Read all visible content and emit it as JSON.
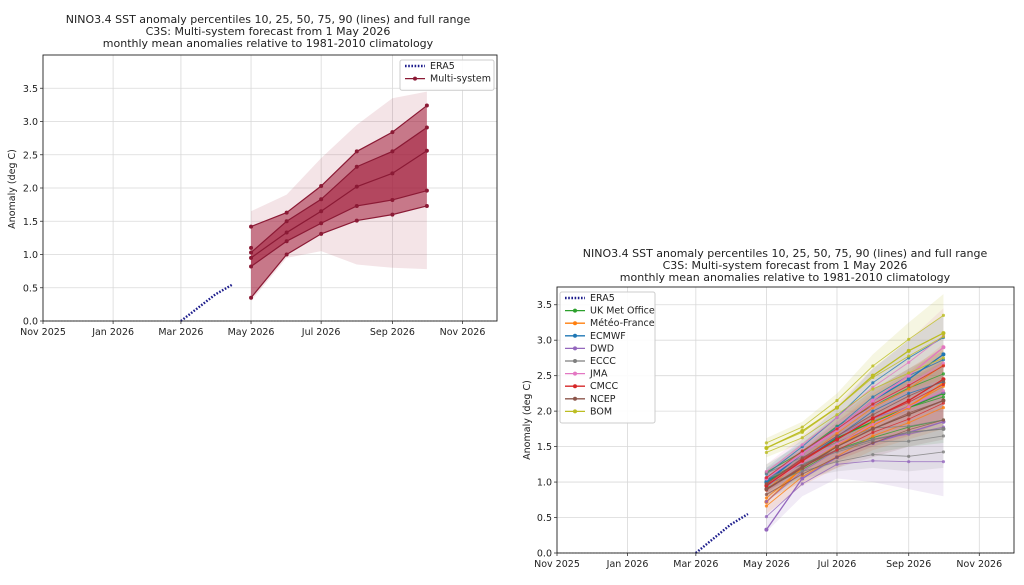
{
  "chart_data": [
    {
      "type": "line",
      "title": "NINO3.4 SST anomaly percentiles 10, 25, 50, 75, 90 (lines) and full range",
      "subtitle_1": "C3S: Multi-system forecast from 1 May 2026",
      "subtitle_2": "monthly mean anomalies relative to 1981-2010 climatology",
      "xlabel": "",
      "ylabel": "Anomaly (deg C)",
      "xlim": [
        "2025-11-01",
        "2026-12-01"
      ],
      "ylim": [
        0,
        4.0
      ],
      "x_ticks": [
        "Nov 2025",
        "Jan 2026",
        "Mar 2026",
        "May 2026",
        "Jul 2026",
        "Sep 2026",
        "Nov 2026"
      ],
      "y_ticks": [
        "0.0",
        "0.5",
        "1.0",
        "1.5",
        "2.0",
        "2.5",
        "3.0",
        "3.5"
      ],
      "grid": true,
      "legend_position": "top-right",
      "legend": [
        "ERA5",
        "Multi-system"
      ],
      "era5": {
        "color": "#1c1c8c",
        "x": [
          "2026-03-01",
          "2026-03-04",
          "2026-03-07",
          "2026-03-10",
          "2026-03-13",
          "2026-03-16",
          "2026-03-19",
          "2026-03-22",
          "2026-03-25",
          "2026-03-28",
          "2026-03-31",
          "2026-04-03",
          "2026-04-06",
          "2026-04-09",
          "2026-04-12",
          "2026-04-15"
        ],
        "y": [
          0.0,
          0.04,
          0.08,
          0.12,
          0.16,
          0.2,
          0.24,
          0.28,
          0.32,
          0.36,
          0.4,
          0.43,
          0.46,
          0.49,
          0.52,
          0.55
        ]
      },
      "forecast_x": [
        "2026-05-01",
        "2026-06-01",
        "2026-07-01",
        "2026-08-01",
        "2026-09-01",
        "2026-10-01"
      ],
      "band_color": "#a31f3c",
      "full_range": {
        "min": [
          0.3,
          0.95,
          1.05,
          0.85,
          0.8,
          0.78
        ],
        "max": [
          1.65,
          1.9,
          2.45,
          2.95,
          3.35,
          3.45
        ]
      },
      "percentiles": {
        "p10": [
          0.35,
          1.0,
          1.31,
          1.51,
          1.6,
          1.73
        ],
        "p25": [
          0.82,
          1.2,
          1.47,
          1.73,
          1.82,
          1.96
        ],
        "p50": [
          0.95,
          1.33,
          1.65,
          2.02,
          2.22,
          2.56
        ],
        "p75": [
          1.03,
          1.5,
          1.83,
          2.32,
          2.55,
          2.91
        ],
        "p90": [
          1.42,
          1.63,
          2.03,
          2.55,
          2.84,
          3.24
        ]
      },
      "extra_points_may": [
        1.1
      ]
    },
    {
      "type": "line",
      "title": "NINO3.4 SST anomaly percentiles 10, 25, 50, 75, 90 (lines) and full range",
      "subtitle_1": "C3S: Multi-system forecast from 1 May 2026",
      "subtitle_2": "monthly mean anomalies relative to 1981-2010 climatology",
      "xlabel": "",
      "ylabel": "Anomaly (deg C)",
      "xlim": [
        "2025-11-01",
        "2026-12-01"
      ],
      "ylim": [
        0,
        3.75
      ],
      "x_ticks": [
        "Nov 2025",
        "Jan 2026",
        "Mar 2026",
        "May 2026",
        "Jul 2026",
        "Sep 2026",
        "Nov 2026"
      ],
      "y_ticks": [
        "0.0",
        "0.5",
        "1.0",
        "1.5",
        "2.0",
        "2.5",
        "3.0",
        "3.5"
      ],
      "grid": true,
      "legend_position": "top-left",
      "forecast_x": [
        "2026-05-01",
        "2026-06-01",
        "2026-07-01",
        "2026-08-01",
        "2026-09-01",
        "2026-10-01"
      ],
      "era5": {
        "color": "#1c1c8c",
        "x": [
          "2026-03-01",
          "2026-03-04",
          "2026-03-07",
          "2026-03-10",
          "2026-03-13",
          "2026-03-16",
          "2026-03-19",
          "2026-03-22",
          "2026-03-25",
          "2026-03-28",
          "2026-03-31",
          "2026-04-03",
          "2026-04-06",
          "2026-04-09",
          "2026-04-12",
          "2026-04-15"
        ],
        "y": [
          0.0,
          0.04,
          0.08,
          0.12,
          0.16,
          0.2,
          0.24,
          0.28,
          0.32,
          0.36,
          0.4,
          0.43,
          0.46,
          0.49,
          0.52,
          0.55
        ]
      },
      "legend": [
        "ERA5",
        "UK Met Office",
        "Météo-France",
        "ECMWF",
        "DWD",
        "ECCC",
        "JMA",
        "CMCC",
        "NCEP",
        "BOM"
      ],
      "series": [
        {
          "name": "UK Met Office",
          "color": "#2ca02c",
          "range": {
            "min": [
              0.8,
              1.05,
              1.3,
              1.4,
              1.5,
              1.55
            ],
            "max": [
              1.25,
              1.55,
              1.95,
              2.3,
              2.6,
              2.85
            ]
          },
          "values": [
            1.0,
            1.3,
            1.62,
            1.85,
            2.05,
            2.25
          ]
        },
        {
          "name": "Météo-France",
          "color": "#ff7f0e",
          "range": {
            "min": [
              0.55,
              0.95,
              1.2,
              1.45,
              1.6,
              1.75
            ],
            "max": [
              1.0,
              1.45,
              1.85,
              2.25,
              2.55,
              2.95
            ]
          },
          "values": [
            0.72,
            1.2,
            1.5,
            1.8,
            2.05,
            2.4
          ]
        },
        {
          "name": "ECMWF",
          "color": "#1f77b4",
          "range": {
            "min": [
              0.85,
              1.2,
              1.5,
              1.8,
              2.0,
              2.1
            ],
            "max": [
              1.2,
              1.6,
              2.05,
              2.6,
              3.0,
              3.35
            ]
          },
          "values": [
            1.0,
            1.4,
            1.75,
            2.15,
            2.45,
            2.8
          ]
        },
        {
          "name": "DWD",
          "color": "#9467bd",
          "range": {
            "min": [
              0.3,
              0.8,
              1.05,
              1.0,
              0.9,
              0.8
            ],
            "max": [
              1.15,
              1.5,
              1.85,
              2.2,
              2.45,
              2.75
            ]
          },
          "values": [
            0.33,
            1.05,
            1.35,
            1.55,
            1.7,
            1.85
          ]
        },
        {
          "name": "ECCC",
          "color": "#7f7f7f",
          "range": {
            "min": [
              0.9,
              1.05,
              1.15,
              1.2,
              1.15,
              1.2
            ],
            "max": [
              1.2,
              1.45,
              1.7,
              1.95,
              2.0,
              2.1
            ]
          },
          "values": [
            1.05,
            1.25,
            1.45,
            1.6,
            1.7,
            1.75
          ]
        },
        {
          "name": "JMA",
          "color": "#e377c2",
          "range": {
            "min": [
              0.85,
              1.15,
              1.35,
              1.55,
              1.75,
              1.9
            ],
            "max": [
              1.25,
              1.65,
              2.1,
              2.6,
              3.0,
              3.45
            ]
          },
          "values": [
            1.05,
            1.4,
            1.75,
            2.15,
            2.5,
            2.9
          ]
        },
        {
          "name": "CMCC",
          "color": "#d62728",
          "range": {
            "min": [
              0.8,
              1.1,
              1.3,
              1.5,
              1.65,
              1.85
            ],
            "max": [
              1.15,
              1.55,
              1.9,
              2.3,
              2.6,
              2.9
            ]
          },
          "values": [
            0.95,
            1.3,
            1.6,
            1.9,
            2.15,
            2.45
          ]
        },
        {
          "name": "NCEP",
          "color": "#8c564b",
          "range": {
            "min": [
              0.75,
              1.0,
              1.2,
              1.35,
              1.5,
              1.6
            ],
            "max": [
              1.05,
              1.45,
              1.8,
              2.15,
              2.45,
              2.7
            ]
          },
          "values": [
            0.9,
            1.2,
            1.5,
            1.75,
            1.95,
            2.15
          ]
        },
        {
          "name": "BOM",
          "color": "#bcbd22",
          "range": {
            "min": [
              1.35,
              1.55,
              1.85,
              2.15,
              2.3,
              2.45
            ],
            "max": [
              1.62,
              1.85,
              2.25,
              2.8,
              3.25,
              3.65
            ]
          },
          "values": [
            1.48,
            1.72,
            2.05,
            2.5,
            2.85,
            3.1
          ]
        }
      ]
    }
  ]
}
